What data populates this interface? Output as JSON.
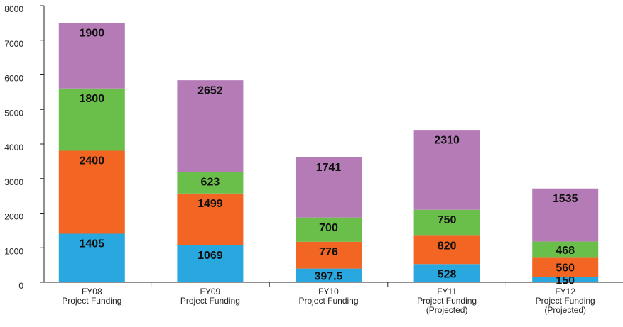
{
  "chart_data": {
    "type": "stacked-bar",
    "categories": [
      [
        "FY08",
        "Project Funding"
      ],
      [
        "FY09",
        "Project Funding"
      ],
      [
        "FY10",
        "Project Funding"
      ],
      [
        "FY11",
        "Project Funding",
        "(Projected)"
      ],
      [
        "FY12",
        "Project Funding",
        "(Projected)"
      ]
    ],
    "series": [
      {
        "color": "#29a8e0",
        "values": [
          1405,
          1069,
          397.5,
          528,
          150
        ]
      },
      {
        "color": "#f26522",
        "values": [
          2400,
          1499,
          776,
          820,
          560
        ]
      },
      {
        "color": "#6abf4b",
        "values": [
          1800,
          623,
          700,
          750,
          468
        ]
      },
      {
        "color": "#b57bb6",
        "values": [
          1900,
          2652,
          1741,
          2310,
          1535
        ]
      }
    ],
    "ylim": [
      0,
      8000
    ],
    "yticks": [
      0,
      1000,
      2000,
      3000,
      4000,
      5000,
      6000,
      7000,
      8000
    ]
  }
}
